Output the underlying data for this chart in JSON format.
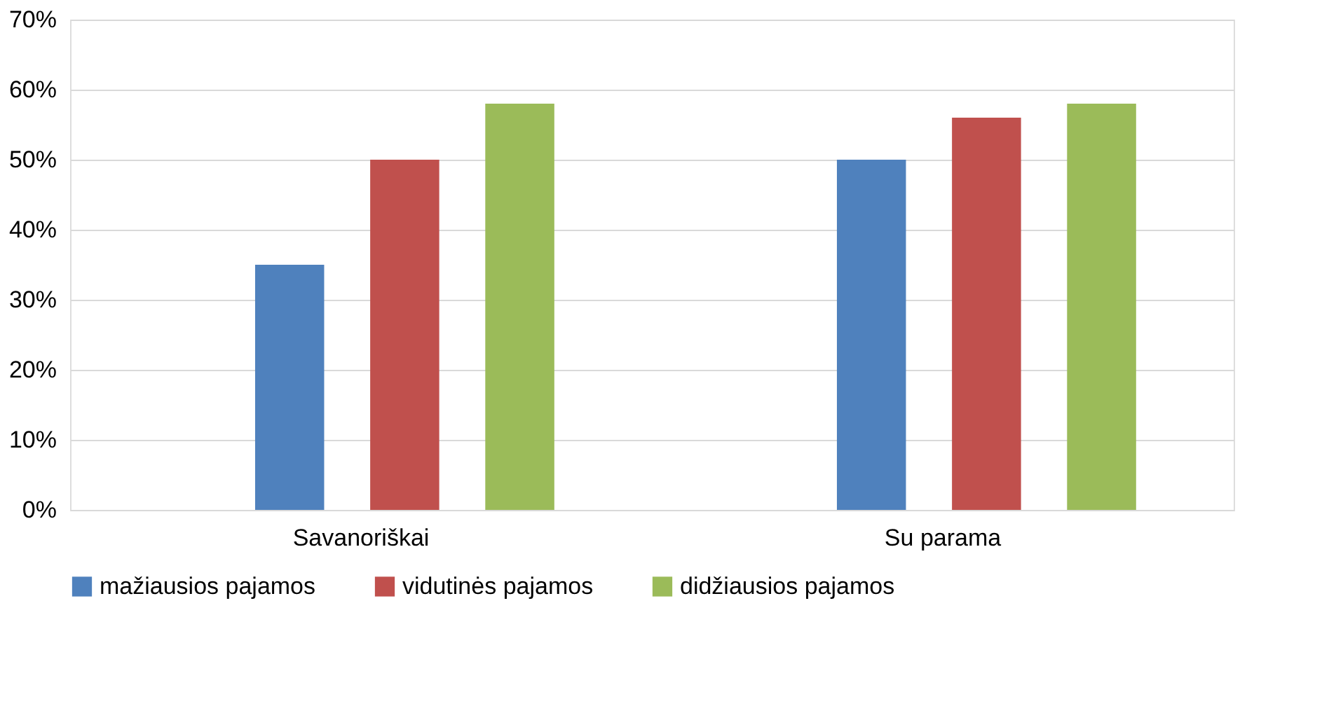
{
  "chart_data": {
    "type": "bar",
    "categories": [
      "Savanoriškai",
      "Su parama"
    ],
    "series": [
      {
        "name": "mažiausios pajamos",
        "color": "#4f81bd",
        "values": [
          35,
          50
        ]
      },
      {
        "name": "vidutinės pajamos",
        "color": "#c0504d",
        "values": [
          50,
          56
        ]
      },
      {
        "name": "didžiausios pajamos",
        "color": "#9bbb59",
        "values": [
          58,
          58
        ]
      }
    ],
    "ylim": [
      0,
      70
    ],
    "yticks": [
      {
        "value": 0,
        "label": "0%"
      },
      {
        "value": 10,
        "label": "10%"
      },
      {
        "value": 20,
        "label": "20%"
      },
      {
        "value": 30,
        "label": "30%"
      },
      {
        "value": 40,
        "label": "40%"
      },
      {
        "value": 50,
        "label": "50%"
      },
      {
        "value": 60,
        "label": "60%"
      },
      {
        "value": 70,
        "label": "70%"
      }
    ],
    "grid": "y",
    "legend": "bottom"
  }
}
